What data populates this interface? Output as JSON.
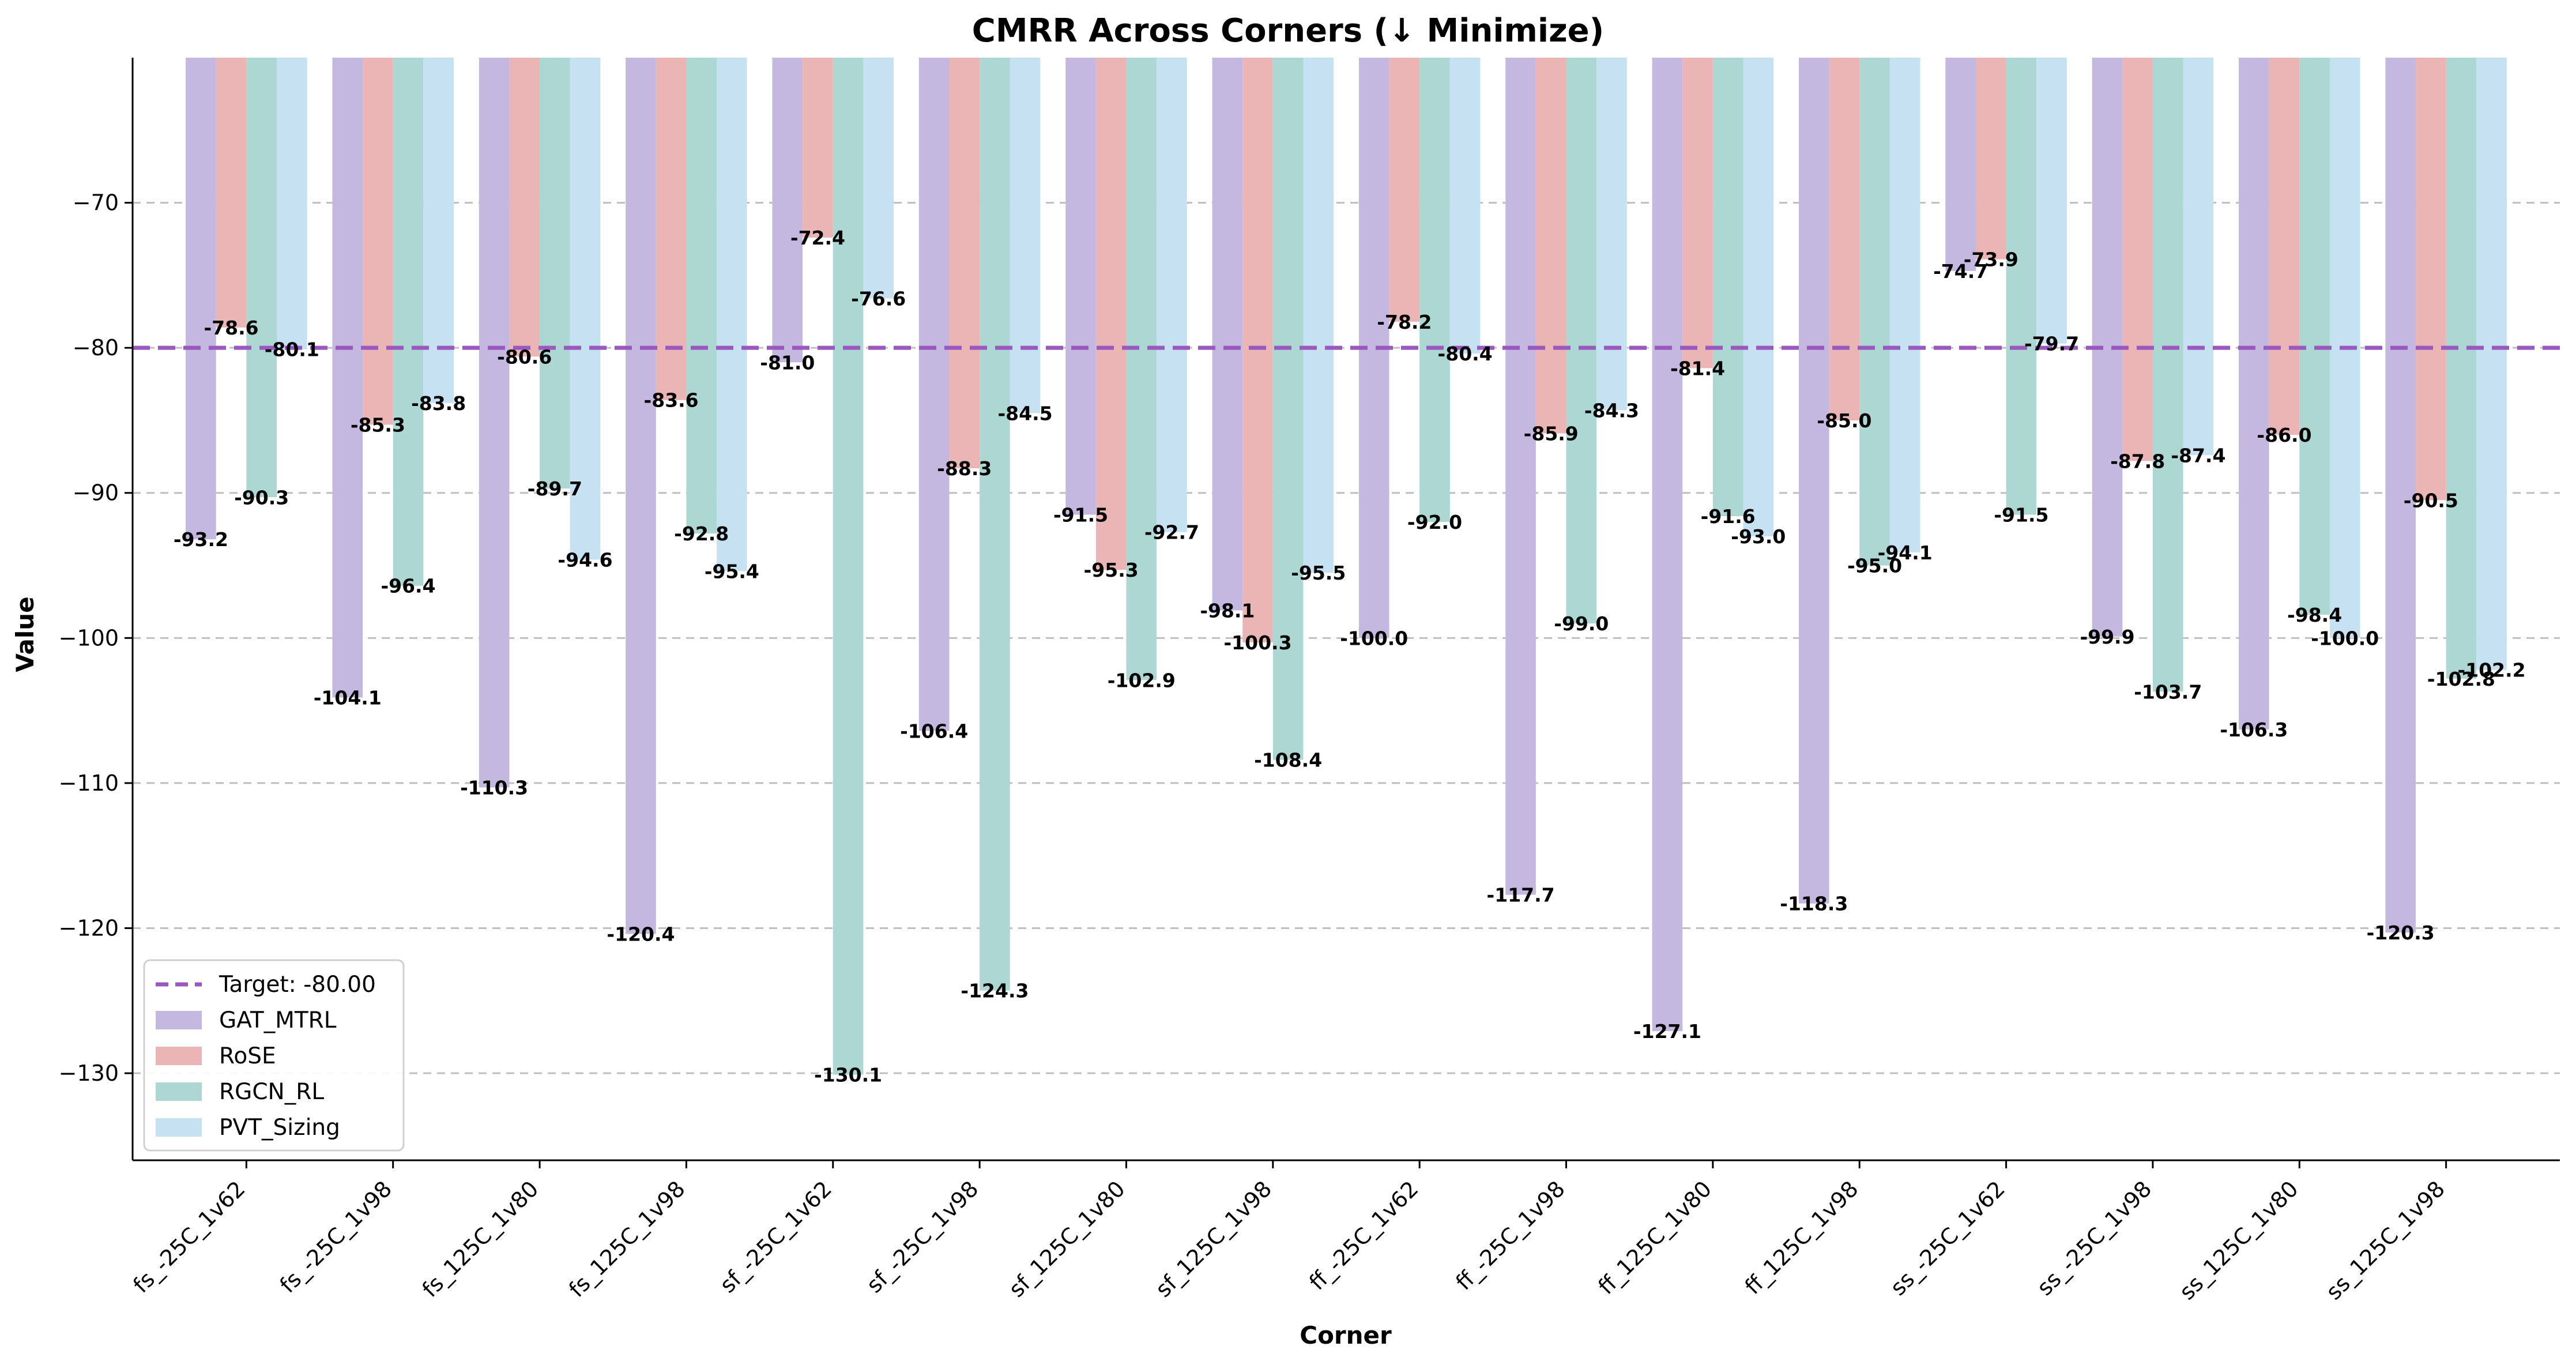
{
  "chart_data": {
    "type": "bar",
    "title": "CMRR Across Corners (↓ Minimize)",
    "xlabel": "Corner",
    "ylabel": "Value",
    "ylim": [
      -136,
      -60
    ],
    "yticks": [
      -70,
      -80,
      -90,
      -100,
      -110,
      -120,
      -130
    ],
    "grid": "horizontal dashed",
    "legend_position": "lower-left",
    "categories": [
      "fs_-25C_1v62",
      "fs_-25C_1v98",
      "fs_125C_1v80",
      "fs_125C_1v98",
      "sf_-25C_1v62",
      "sf_-25C_1v98",
      "sf_125C_1v80",
      "sf_125C_1v98",
      "ff_-25C_1v62",
      "ff_-25C_1v98",
      "ff_125C_1v80",
      "ff_125C_1v98",
      "ss_-25C_1v62",
      "ss_-25C_1v98",
      "ss_125C_1v80",
      "ss_125C_1v98"
    ],
    "series": [
      {
        "name": "GAT_MTRL",
        "color": "#c5b8e0",
        "values": [
          -93.2,
          -104.1,
          -110.3,
          -120.4,
          -81.0,
          -106.4,
          -91.5,
          -98.1,
          -100.0,
          -117.7,
          -127.1,
          -118.3,
          -74.7,
          -99.9,
          -106.3,
          -120.3
        ]
      },
      {
        "name": "RoSE",
        "color": "#ebb5b5",
        "values": [
          -78.6,
          -85.3,
          -80.6,
          -83.6,
          -72.4,
          -88.3,
          -95.3,
          -100.3,
          -78.2,
          -85.9,
          -81.4,
          -85.0,
          -73.9,
          -87.8,
          -86.0,
          -90.5
        ]
      },
      {
        "name": "RGCN_RL",
        "color": "#acd7d2",
        "values": [
          -90.3,
          -96.4,
          -89.7,
          -92.8,
          -130.1,
          -124.3,
          -102.9,
          -108.4,
          -92.0,
          -99.0,
          -91.6,
          -95.0,
          -91.5,
          -103.7,
          -98.4,
          -102.8
        ]
      },
      {
        "name": "PVT_Sizing",
        "color": "#c6e1f2",
        "values": [
          -80.1,
          -83.8,
          -94.6,
          -95.4,
          -76.6,
          -84.5,
          -92.7,
          -95.5,
          -80.4,
          -84.3,
          -93.0,
          -94.1,
          -79.7,
          -87.4,
          -100.0,
          -102.2
        ]
      }
    ],
    "target": {
      "label": "Target: -80.00",
      "value": -80.0,
      "color": "#9b59c0"
    }
  }
}
